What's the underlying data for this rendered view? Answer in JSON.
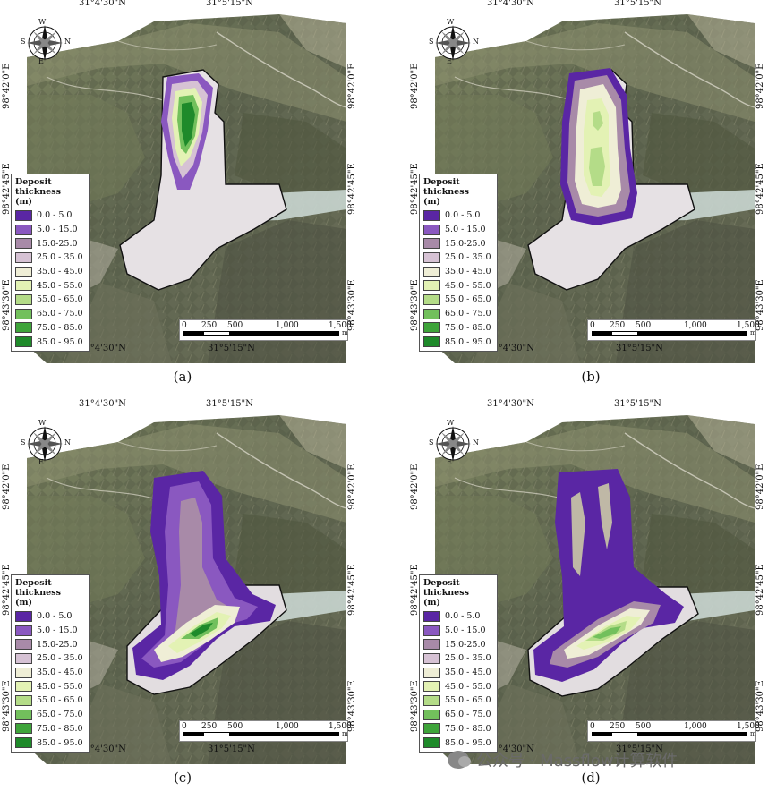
{
  "coords": {
    "top_left": "31°4'30\"N",
    "top_right": "31°5'15\"N",
    "bottom_left": "31°4'30\"N",
    "bottom_right": "31°5'15\"N",
    "lat_1": "98°42'0\"E",
    "lat_2": "98°42'45\"E",
    "lat_3": "98°43'30\"E"
  },
  "compass": {
    "n": "N",
    "s": "S",
    "e": "E",
    "w": "W"
  },
  "legend": {
    "title": "Deposit thickness",
    "unit": "(m)",
    "classes": [
      {
        "label": "0.0 - 5.0",
        "color": "#5a26a4"
      },
      {
        "label": "5.0 - 15.0",
        "color": "#8a58c0"
      },
      {
        "label": "15.0-25.0",
        "color": "#a88aa8"
      },
      {
        "label": "25.0 - 35.0",
        "color": "#d6c2d4"
      },
      {
        "label": "35.0 - 45.0",
        "color": "#efeed6"
      },
      {
        "label": "45.0 - 55.0",
        "color": "#e3f2b4"
      },
      {
        "label": "55.0 - 65.0",
        "color": "#b4dc88"
      },
      {
        "label": "65.0 - 75.0",
        "color": "#72c05c"
      },
      {
        "label": "75.0 - 85.0",
        "color": "#3ea43a"
      },
      {
        "label": "85.0 - 95.0",
        "color": "#1e8a2a"
      }
    ]
  },
  "scale": {
    "ticks": [
      "0",
      "250",
      "500",
      "1,000",
      "1,500"
    ],
    "unit": "m"
  },
  "panels": [
    {
      "caption": "(a)"
    },
    {
      "caption": "(b)"
    },
    {
      "caption": "(c)"
    },
    {
      "caption": "(d)"
    }
  ],
  "watermark": "公众号 · Massflow计算软件",
  "colors": {
    "outline": "#111111",
    "river": "#c9d6d0",
    "deposit_base": "#e2dde0"
  }
}
